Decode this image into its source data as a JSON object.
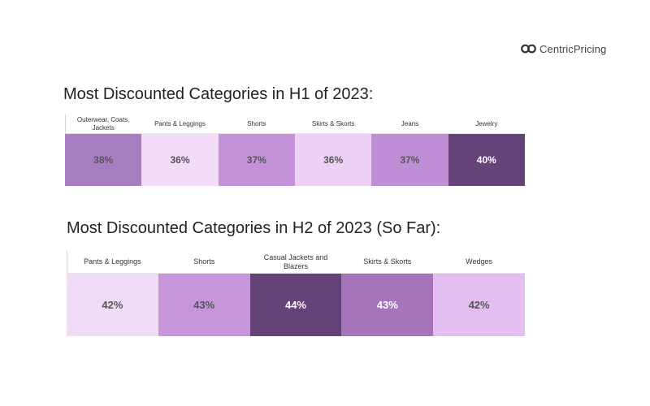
{
  "brand": {
    "name": "CentricPricing",
    "icon": "infinity-logo-icon"
  },
  "chart_data": [
    {
      "type": "table",
      "title": "Most Discounted Categories in H1 of 2023:",
      "categories": [
        "Outerwear, Coats, Jackets",
        "Pants & Leggings",
        "Shorts",
        "Skirts & Skorts",
        "Jeans",
        "Jewelry"
      ],
      "values": [
        38,
        36,
        37,
        36,
        37,
        40
      ],
      "labels": [
        "38%",
        "36%",
        "37%",
        "36%",
        "37%",
        "40%"
      ],
      "colors": [
        "#a87ec2",
        "#f2dcf8",
        "#c592d9",
        "#ecd0f5",
        "#c08ed6",
        "#654278"
      ],
      "text_colors": [
        "#555555",
        "#555555",
        "#555555",
        "#555555",
        "#555555",
        "#ffffff"
      ]
    },
    {
      "type": "table",
      "title": "Most Discounted Categories in H2 of 2023 (So Far):",
      "categories": [
        "Pants & Leggings",
        "Shorts",
        "Casual Jackets and Blazers",
        "Skirts & Skorts",
        "Wedges"
      ],
      "values": [
        42,
        43,
        44,
        43,
        42
      ],
      "labels": [
        "42%",
        "43%",
        "44%",
        "43%",
        "42%"
      ],
      "colors": [
        "#f1dcf8",
        "#c596d9",
        "#654278",
        "#a574ba",
        "#e4bdf1"
      ],
      "text_colors": [
        "#555555",
        "#555555",
        "#ffffff",
        "#ffffff",
        "#555555"
      ]
    }
  ]
}
